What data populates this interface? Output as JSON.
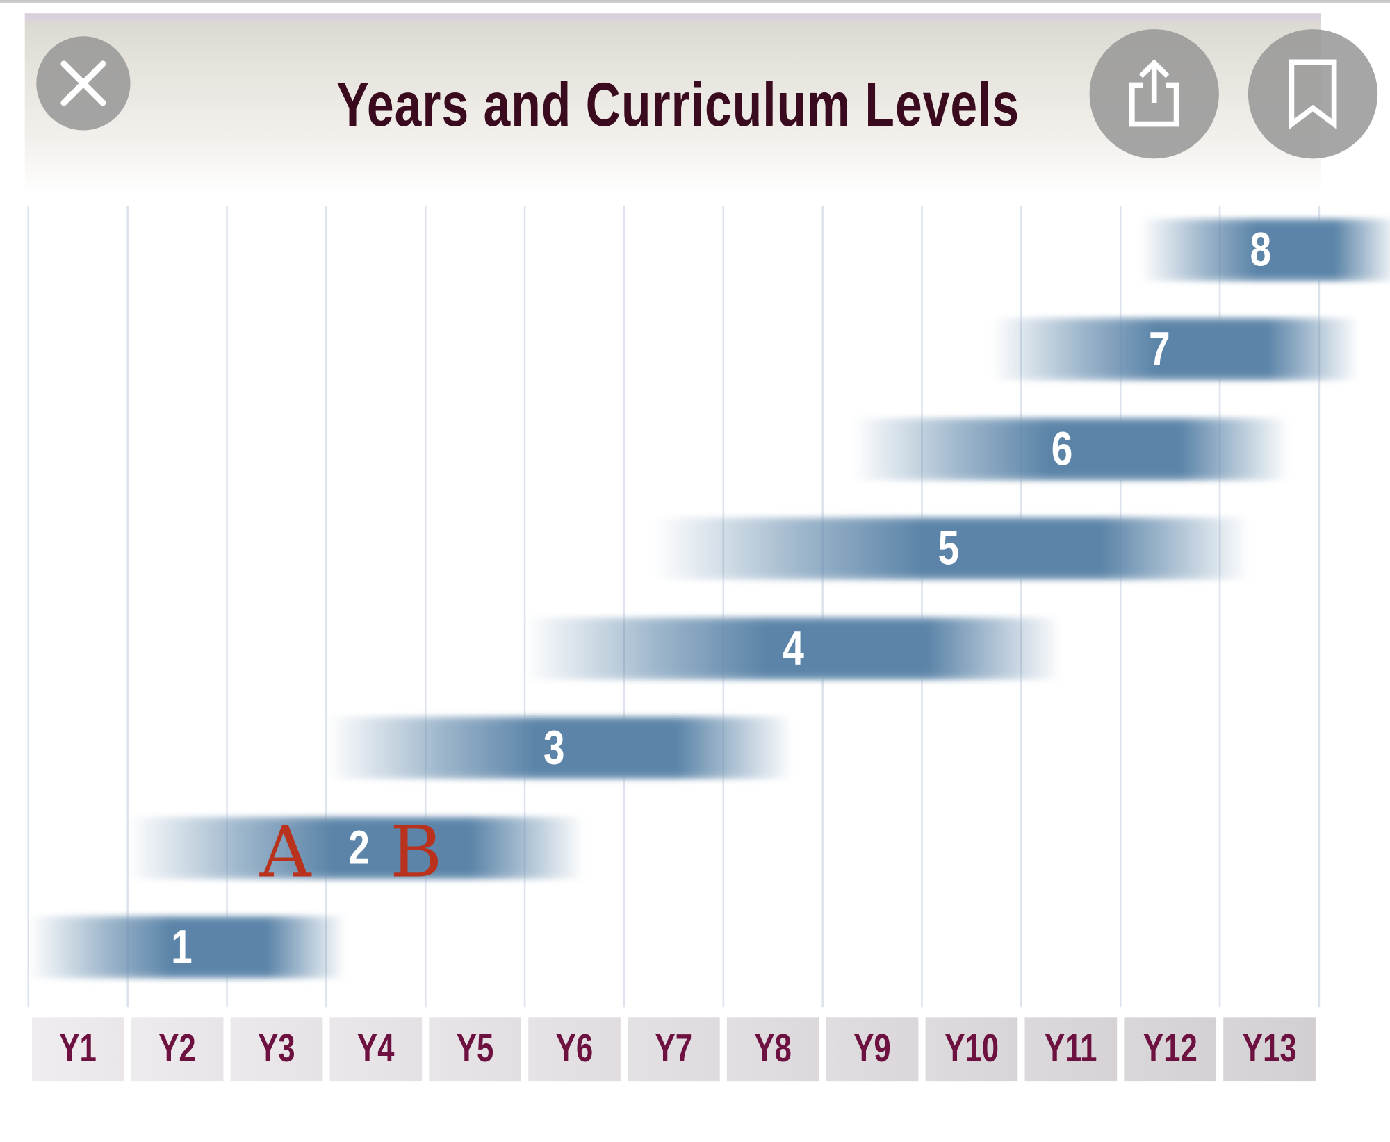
{
  "header": {
    "title": "Years and Curriculum Levels",
    "close_icon": "close-icon",
    "share_icon": "share-icon",
    "bookmark_icon": "bookmark-icon"
  },
  "chart_data": {
    "type": "bar",
    "orientation": "horizontal-range",
    "title": "Years and Curriculum Levels",
    "categories": [
      "Y1",
      "Y2",
      "Y3",
      "Y4",
      "Y5",
      "Y6",
      "Y7",
      "Y8",
      "Y9",
      "Y10",
      "Y11",
      "Y12",
      "Y13"
    ],
    "series": [
      {
        "label": "1",
        "start": 0.0,
        "end": 3.2
      },
      {
        "label": "2",
        "start": 1.0,
        "end": 5.6
      },
      {
        "label": "3",
        "start": 3.0,
        "end": 7.7
      },
      {
        "label": "4",
        "start": 5.0,
        "end": 10.4
      },
      {
        "label": "5",
        "start": 6.3,
        "end": 12.3
      },
      {
        "label": "6",
        "start": 8.3,
        "end": 12.7
      },
      {
        "label": "7",
        "start": 9.7,
        "end": 13.4
      },
      {
        "label": "8",
        "start": 11.2,
        "end": 13.8
      }
    ],
    "units": "years (column index from start of Y1)",
    "grid": true,
    "bar_color": "#5b84a8",
    "label_color": "#6d1240",
    "annotations": [
      {
        "text": "A",
        "level": "2"
      },
      {
        "text": "B",
        "level": "2"
      }
    ],
    "annotation_color": "#b8321e"
  }
}
